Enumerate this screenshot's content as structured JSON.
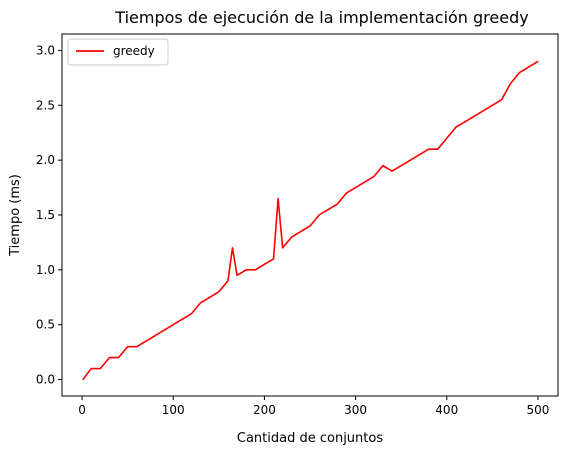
{
  "chart_data": {
    "type": "line",
    "title": "Tiempos de ejecución de la implementación greedy",
    "xlabel": "Cantidad de conjuntos",
    "ylabel": "Tiempo (ms)",
    "xlim": [
      -22,
      522
    ],
    "ylim": [
      -0.15,
      3.15
    ],
    "xticks": [
      0,
      100,
      200,
      300,
      400,
      500
    ],
    "yticks": [
      0.0,
      0.5,
      1.0,
      1.5,
      2.0,
      2.5,
      3.0
    ],
    "xtick_labels": [
      "0",
      "100",
      "200",
      "300",
      "400",
      "500"
    ],
    "ytick_labels": [
      "0.0",
      "0.5",
      "1.0",
      "1.5",
      "2.0",
      "2.5",
      "3.0"
    ],
    "grid": false,
    "legend": {
      "placement": "top-left"
    },
    "series": [
      {
        "name": "greedy",
        "color": "#ff0000",
        "x": [
          1,
          10,
          20,
          30,
          40,
          50,
          60,
          70,
          80,
          90,
          100,
          110,
          120,
          130,
          140,
          150,
          160,
          165,
          170,
          180,
          190,
          200,
          210,
          215,
          220,
          225,
          230,
          240,
          250,
          260,
          270,
          280,
          290,
          300,
          310,
          320,
          330,
          340,
          350,
          360,
          370,
          380,
          390,
          400,
          410,
          420,
          430,
          440,
          450,
          460,
          470,
          480,
          490,
          500
        ],
        "values": [
          0.0,
          0.1,
          0.1,
          0.2,
          0.2,
          0.3,
          0.3,
          0.35,
          0.4,
          0.45,
          0.5,
          0.55,
          0.6,
          0.7,
          0.75,
          0.8,
          0.9,
          1.2,
          0.95,
          1.0,
          1.0,
          1.05,
          1.1,
          1.65,
          1.2,
          1.25,
          1.3,
          1.35,
          1.4,
          1.5,
          1.55,
          1.6,
          1.7,
          1.75,
          1.8,
          1.85,
          1.95,
          1.9,
          1.95,
          2.0,
          2.05,
          2.1,
          2.1,
          2.2,
          2.3,
          2.35,
          2.4,
          2.45,
          2.5,
          2.55,
          2.7,
          2.8,
          2.85,
          2.9
        ]
      }
    ]
  }
}
